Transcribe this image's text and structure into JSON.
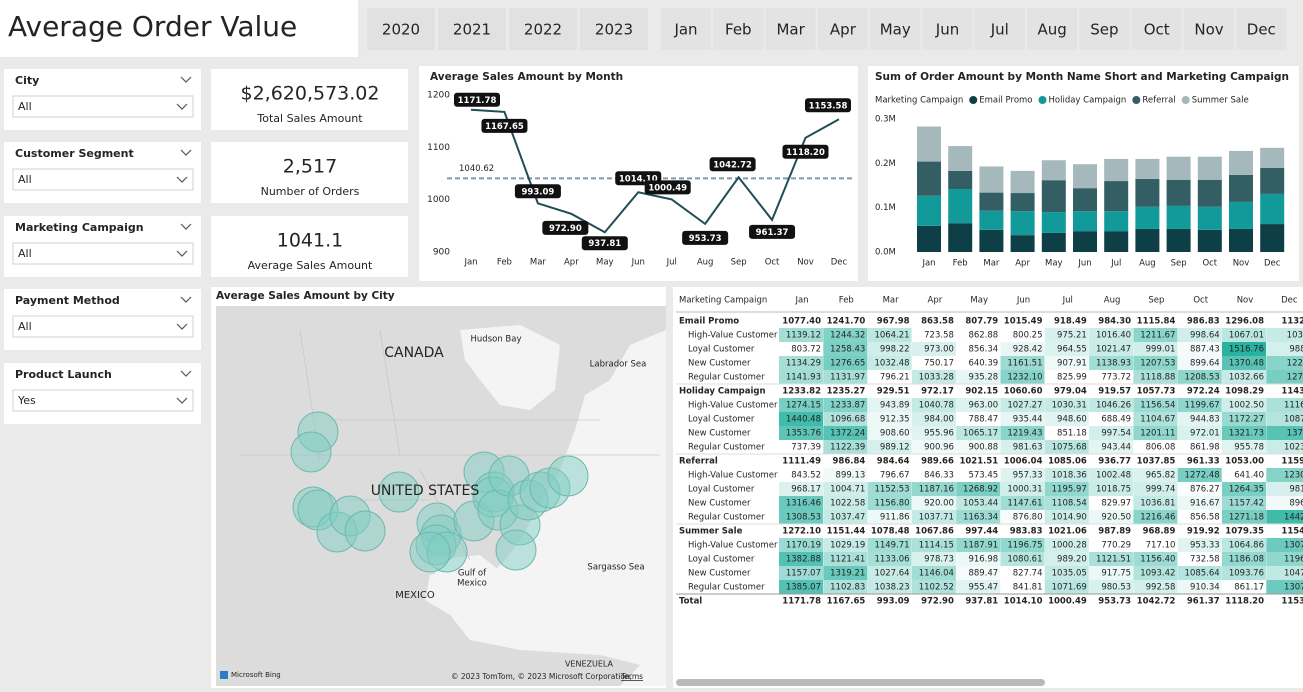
{
  "header": {
    "title": "Average Order Value"
  },
  "years": [
    "2020",
    "2021",
    "2022",
    "2023"
  ],
  "months": [
    "Jan",
    "Feb",
    "Mar",
    "Apr",
    "May",
    "Jun",
    "Jul",
    "Aug",
    "Sep",
    "Oct",
    "Nov",
    "Dec"
  ],
  "slicers": [
    {
      "label": "City",
      "value": "All"
    },
    {
      "label": "Customer Segment",
      "value": "All"
    },
    {
      "label": "Marketing Campaign",
      "value": "All"
    },
    {
      "label": "Payment Method",
      "value": "All"
    },
    {
      "label": "Product Launch",
      "value": "Yes"
    }
  ],
  "kpis": [
    {
      "value": "$2,620,573.02",
      "label": "Total Sales Amount"
    },
    {
      "value": "2,517",
      "label": "Number of Orders"
    },
    {
      "value": "1041.1",
      "label": "Average Sales Amount"
    }
  ],
  "line_chart": {
    "type": "line",
    "title": "Average Sales Amount by Month",
    "categories": [
      "Jan",
      "Feb",
      "Mar",
      "Apr",
      "May",
      "Jun",
      "Jul",
      "Aug",
      "Sep",
      "Oct",
      "Nov",
      "Dec"
    ],
    "values": [
      1171.78,
      1167.65,
      993.09,
      972.9,
      937.81,
      1014.1,
      1000.49,
      953.73,
      1042.72,
      961.37,
      1118.2,
      1153.58
    ],
    "value_labels": [
      "1171.78",
      "1167.65",
      "993.09",
      "972.90",
      "937.81",
      "1014.10",
      "1000.49",
      "953.73",
      "1042.72",
      "961.37",
      "1118.20",
      "1153.58"
    ],
    "average": 1040.62,
    "color": "#1f4e57",
    "ylim": [
      900,
      1200
    ],
    "yticks": [
      900,
      1000,
      1100,
      1200
    ]
  },
  "bar_chart": {
    "type": "bar",
    "stacked": true,
    "title": "Sum of Order Amount by Month Name Short and Marketing Campaign",
    "legend_title": "Marketing Campaign",
    "categories": [
      "Jan",
      "Feb",
      "Mar",
      "Apr",
      "May",
      "Jun",
      "Jul",
      "Aug",
      "Sep",
      "Oct",
      "Nov",
      "Dec"
    ],
    "series": [
      {
        "name": "Email Promo",
        "color": "#0e3f47",
        "values": [
          0.059,
          0.065,
          0.05,
          0.038,
          0.043,
          0.047,
          0.047,
          0.052,
          0.052,
          0.05,
          0.052,
          0.063
        ]
      },
      {
        "name": "Holiday Campaign",
        "color": "#12999a",
        "values": [
          0.068,
          0.077,
          0.043,
          0.054,
          0.047,
          0.045,
          0.045,
          0.05,
          0.052,
          0.052,
          0.061,
          0.068
        ]
      },
      {
        "name": "Referral",
        "color": "#335f64",
        "values": [
          0.077,
          0.041,
          0.041,
          0.041,
          0.072,
          0.052,
          0.068,
          0.063,
          0.059,
          0.061,
          0.061,
          0.059
        ]
      },
      {
        "name": "Summer Sale",
        "color": "#a5b9bc",
        "values": [
          0.079,
          0.056,
          0.059,
          0.05,
          0.045,
          0.054,
          0.05,
          0.045,
          0.052,
          0.052,
          0.054,
          0.045
        ]
      }
    ],
    "ylim": [
      0,
      0.3
    ],
    "yticks": [
      {
        "value": 0,
        "label": "0.0M"
      },
      {
        "value": 0.1,
        "label": "0.1M"
      },
      {
        "value": 0.2,
        "label": "0.2M"
      },
      {
        "value": 0.3,
        "label": "0.3M"
      }
    ]
  },
  "map": {
    "title": "Average Sales Amount by City",
    "labels": [
      "CANADA",
      "Hudson Bay",
      "Labrador Sea",
      "UNITED STATES",
      "Gulf of",
      "Mexico",
      "Sargasso Sea",
      "MEXICO",
      "VENEZUELA"
    ],
    "logo": "Microsoft Bing",
    "attribution": "© 2023 TomTom, © 2023 Microsoft Corporation,",
    "terms": "Terms"
  },
  "matrix": {
    "corner": "Marketing Campaign",
    "columns": [
      "Jan",
      "Feb",
      "Mar",
      "Apr",
      "May",
      "Jun",
      "Jul",
      "Aug",
      "Sep",
      "Oct",
      "Nov",
      "Dec"
    ],
    "groups": [
      {
        "label": "Email Promo",
        "cells": [
          "1077.40",
          "1241.70",
          "967.98",
          "863.58",
          "807.79",
          "1015.49",
          "918.49",
          "984.30",
          "1115.84",
          "986.83",
          "1296.08",
          "1132."
        ],
        "children": [
          {
            "label": "High-Value Customer",
            "cells": [
              "1139.12",
              "1244.32",
              "1064.21",
              "723.58",
              "862.88",
              "800.25",
              "975.21",
              "1016.40",
              "1211.67",
              "998.64",
              "1067.01",
              "1031"
            ]
          },
          {
            "label": "Loyal Customer",
            "cells": [
              "803.72",
              "1258.43",
              "998.22",
              "973.00",
              "856.34",
              "928.42",
              "964.55",
              "1021.47",
              "999.01",
              "887.43",
              "1516.76",
              "988."
            ]
          },
          {
            "label": "New Customer",
            "cells": [
              "1134.29",
              "1276.65",
              "1032.48",
              "750.17",
              "640.39",
              "1161.51",
              "907.91",
              "1138.93",
              "1207.53",
              "899.64",
              "1370.48",
              "1226"
            ]
          },
          {
            "label": "Regular Customer",
            "cells": [
              "1141.93",
              "1131.97",
              "796.21",
              "1033.28",
              "935.28",
              "1232.10",
              "825.99",
              "773.72",
              "1118.88",
              "1208.53",
              "1032.66",
              "1273"
            ]
          }
        ]
      },
      {
        "label": "Holiday Campaign",
        "cells": [
          "1233.82",
          "1235.27",
          "929.51",
          "972.17",
          "902.15",
          "1060.60",
          "979.04",
          "919.57",
          "1057.73",
          "972.24",
          "1098.29",
          "1143."
        ],
        "children": [
          {
            "label": "High-Value Customer",
            "cells": [
              "1274.15",
              "1233.87",
              "943.89",
              "1040.78",
              "963.00",
              "1027.27",
              "1030.31",
              "1046.26",
              "1156.54",
              "1199.67",
              "1002.50",
              "1116."
            ]
          },
          {
            "label": "Loyal Customer",
            "cells": [
              "1440.48",
              "1096.68",
              "912.35",
              "984.00",
              "788.47",
              "935.44",
              "948.60",
              "688.49",
              "1104.67",
              "944.83",
              "1172.27",
              "1087."
            ]
          },
          {
            "label": "New Customer",
            "cells": [
              "1353.76",
              "1372.24",
              "908.60",
              "955.96",
              "1065.17",
              "1219.43",
              "851.18",
              "997.54",
              "1201.11",
              "972.01",
              "1321.73",
              "1375"
            ]
          },
          {
            "label": "Regular Customer",
            "cells": [
              "737.39",
              "1122.39",
              "989.12",
              "900.96",
              "900.88",
              "981.63",
              "1075.68",
              "943.44",
              "806.08",
              "861.98",
              "955.78",
              "1023."
            ]
          }
        ]
      },
      {
        "label": "Referral",
        "cells": [
          "1111.49",
          "986.84",
          "984.64",
          "989.66",
          "1021.51",
          "1006.04",
          "1085.06",
          "936.77",
          "1037.85",
          "961.33",
          "1053.00",
          "1159."
        ],
        "children": [
          {
            "label": "High-Value Customer",
            "cells": [
              "843.52",
              "899.13",
              "796.67",
              "846.33",
              "573.45",
              "957.33",
              "1018.36",
              "1002.48",
              "965.82",
              "1272.48",
              "641.40",
              "1230."
            ]
          },
          {
            "label": "Loyal Customer",
            "cells": [
              "968.17",
              "1004.71",
              "1152.53",
              "1187.16",
              "1268.92",
              "1000.31",
              "1195.97",
              "1018.75",
              "999.74",
              "876.27",
              "1264.35",
              "981."
            ]
          },
          {
            "label": "New Customer",
            "cells": [
              "1316.46",
              "1022.58",
              "1156.80",
              "920.00",
              "1053.44",
              "1147.61",
              "1108.54",
              "829.97",
              "1036.81",
              "916.67",
              "1157.42",
              "896."
            ]
          },
          {
            "label": "Regular Customer",
            "cells": [
              "1308.53",
              "1037.47",
              "911.86",
              "1037.71",
              "1163.34",
              "876.80",
              "1014.90",
              "920.50",
              "1216.46",
              "856.58",
              "1271.18",
              "1442."
            ]
          }
        ]
      },
      {
        "label": "Summer Sale",
        "cells": [
          "1272.10",
          "1151.44",
          "1078.48",
          "1067.86",
          "997.44",
          "983.83",
          "1021.06",
          "987.89",
          "968.89",
          "919.92",
          "1079.35",
          "1154."
        ],
        "children": [
          {
            "label": "High-Value Customer",
            "cells": [
              "1170.19",
              "1029.19",
              "1149.71",
              "1114.15",
              "1187.91",
              "1196.75",
              "1000.28",
              "770.29",
              "717.10",
              "953.33",
              "1064.86",
              "1307."
            ]
          },
          {
            "label": "Loyal Customer",
            "cells": [
              "1382.88",
              "1121.41",
              "1133.06",
              "978.73",
              "916.98",
              "1080.61",
              "989.20",
              "1121.51",
              "1156.40",
              "732.58",
              "1186.08",
              "1196."
            ]
          },
          {
            "label": "New Customer",
            "cells": [
              "1157.07",
              "1319.21",
              "1027.64",
              "1146.04",
              "889.47",
              "827.74",
              "1035.05",
              "917.75",
              "1093.42",
              "1085.64",
              "1093.76",
              "1047."
            ]
          },
          {
            "label": "Regular Customer",
            "cells": [
              "1385.07",
              "1102.83",
              "1038.23",
              "1102.52",
              "955.47",
              "841.81",
              "1071.69",
              "980.53",
              "992.58",
              "910.34",
              "861.17",
              "1307."
            ]
          }
        ]
      }
    ],
    "total": {
      "label": "Total",
      "cells": [
        "1171.78",
        "1167.65",
        "993.09",
        "972.90",
        "937.81",
        "1014.10",
        "1000.49",
        "953.73",
        "1042.72",
        "961.37",
        "1118.20",
        "1153."
      ]
    }
  }
}
